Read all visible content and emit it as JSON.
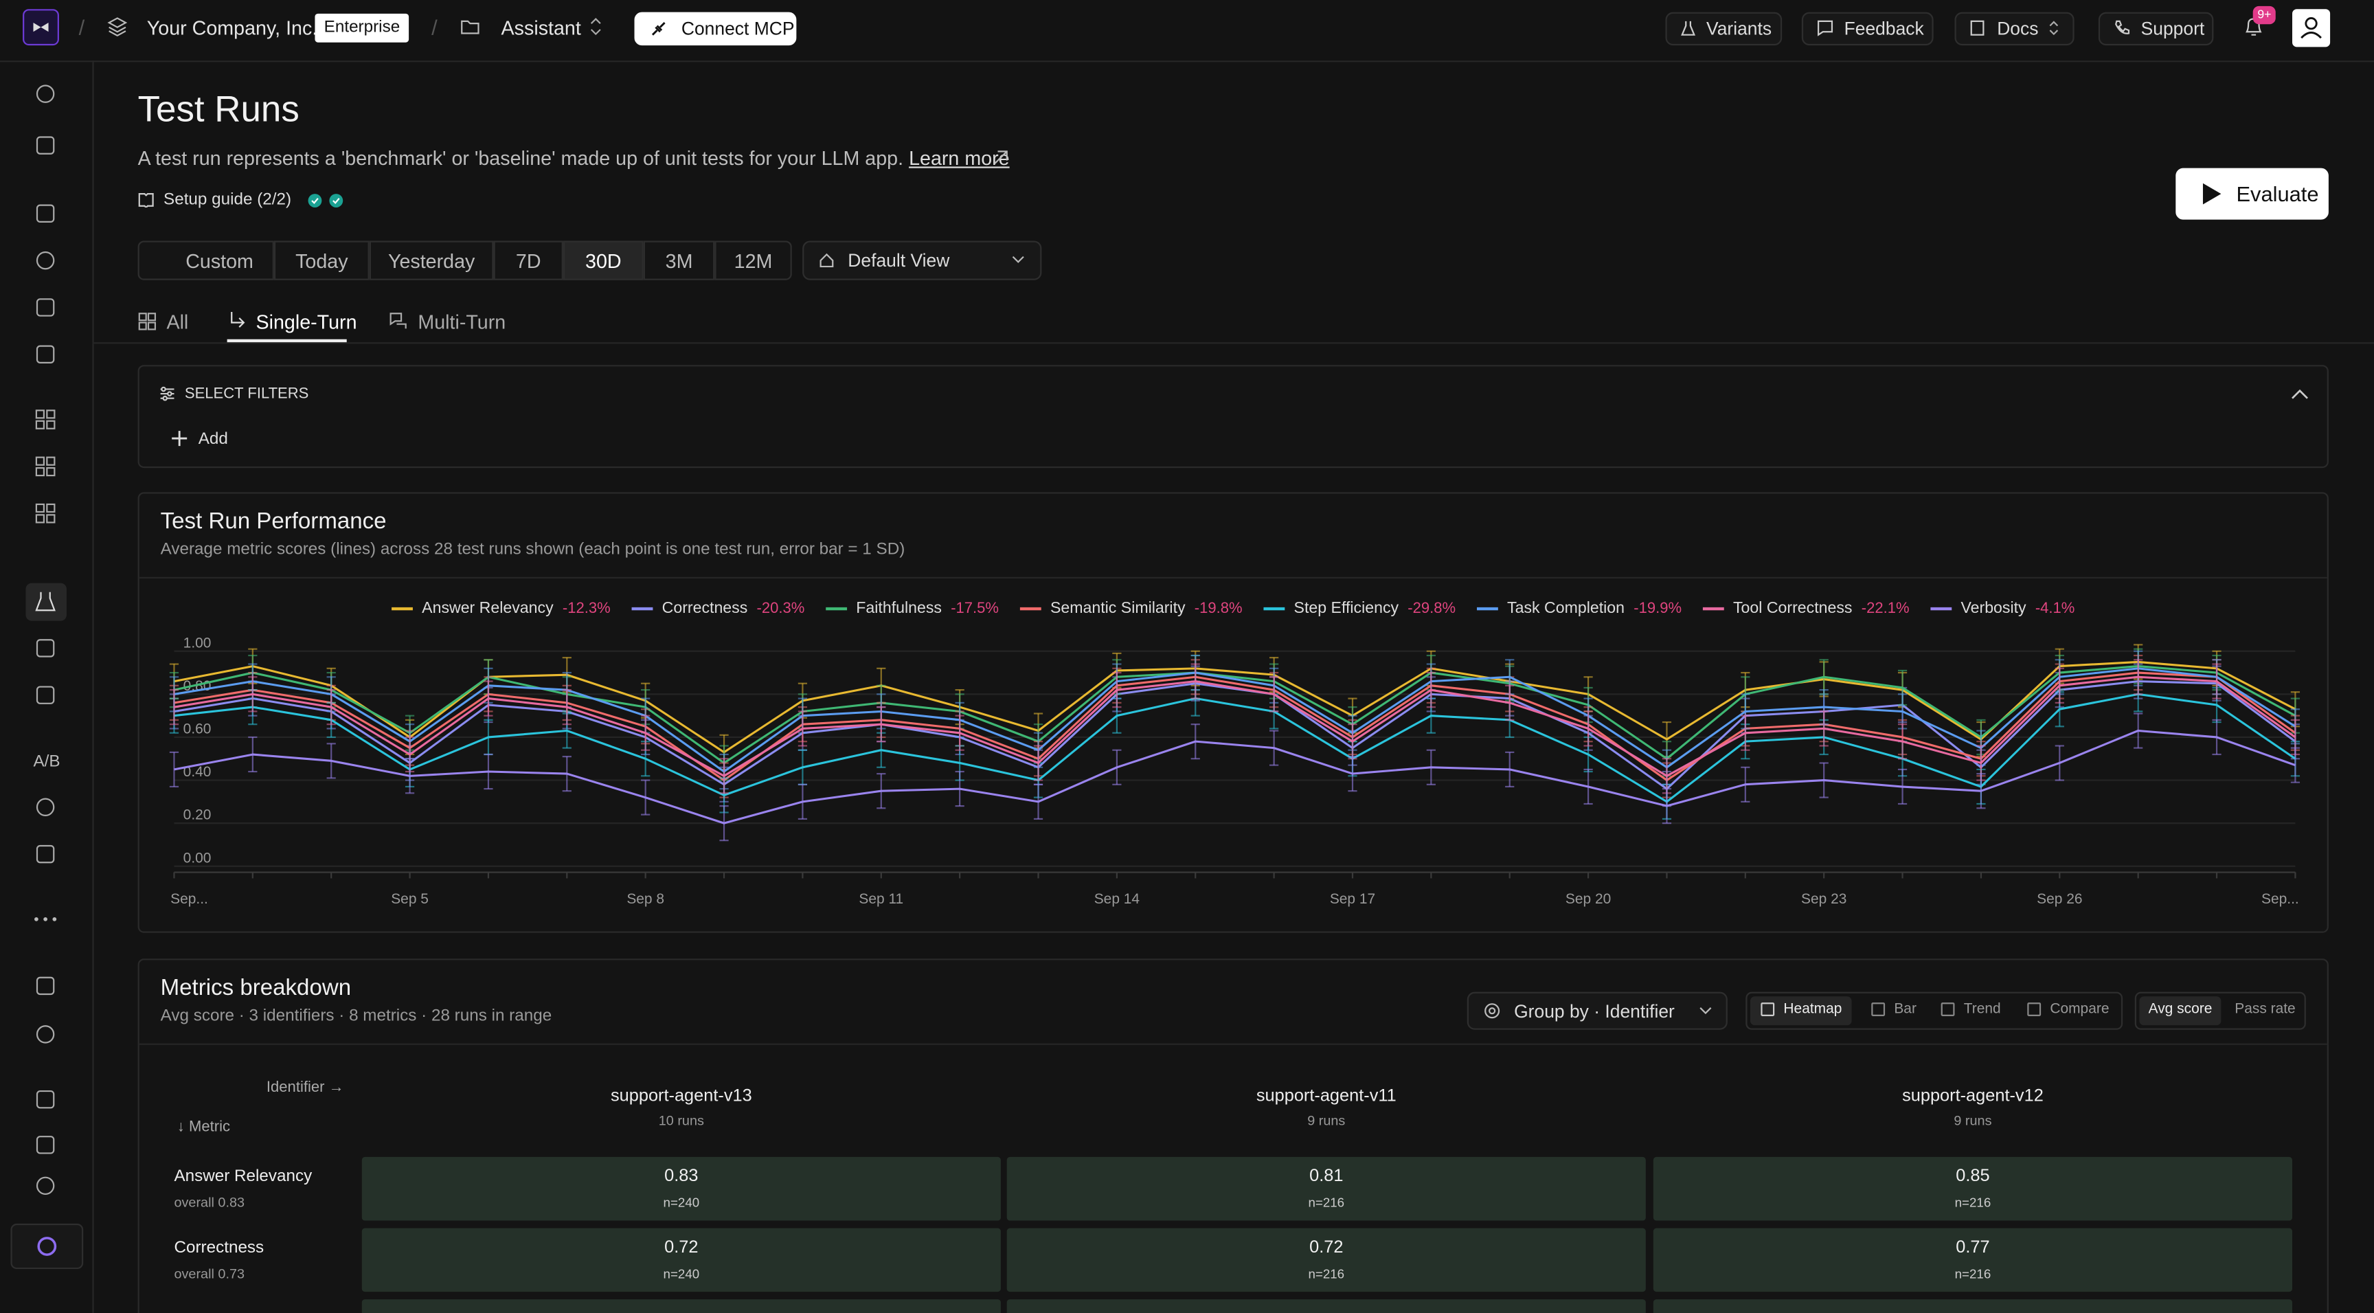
{
  "topbar": {
    "company": "Your Company, Inc.",
    "plan": "Enterprise",
    "project": "Assistant",
    "connect": "Connect MCP",
    "links": [
      "Variants",
      "Feedback",
      "Docs",
      "Support"
    ],
    "badge": "9+"
  },
  "sidebar": {
    "ab": "A/B"
  },
  "header": {
    "title": "Test Runs",
    "description": "A test run represents a 'benchmark' or 'baseline' made up of unit tests for your LLM app.",
    "learn_more": "Learn more",
    "setup_guide": "Setup guide (2/2)",
    "evaluate": "Evaluate"
  },
  "ranges": [
    "Custom",
    "Today",
    "Yesterday",
    "7D",
    "30D",
    "3M",
    "12M"
  ],
  "active_range": 4,
  "view": "Default View",
  "tabs": [
    "All",
    "Single-Turn",
    "Multi-Turn"
  ],
  "active_tab": 1,
  "filters": {
    "title": "SELECT FILTERS",
    "add": "Add"
  },
  "chart_data": {
    "type": "line",
    "title": "Test Run Performance",
    "subtitle": "Average metric scores (lines) across 28 test runs shown (each point is one test run, error bar = 1 SD)",
    "categories": [
      "Sep...",
      null,
      null,
      "Sep 5",
      null,
      null,
      "Sep 8",
      null,
      null,
      "Sep 11",
      null,
      null,
      "Sep 14",
      null,
      null,
      "Sep 17",
      null,
      null,
      "Sep 20",
      null,
      null,
      "Sep 23",
      null,
      null,
      "Sep 26",
      null,
      null,
      "Sep..."
    ],
    "ylim": [
      0,
      1
    ],
    "yticks": [
      {
        "value": 0,
        "label": "0.00"
      },
      {
        "value": 0.2,
        "label": "0.20"
      },
      {
        "value": 0.4,
        "label": "0.40"
      },
      {
        "value": 0.6,
        "label": "0.60"
      },
      {
        "value": 0.8,
        "label": "0.80"
      },
      {
        "value": 1,
        "label": "1.00"
      }
    ],
    "grid": true,
    "legend": "top",
    "series": [
      {
        "name": "Answer Relevancy",
        "change": "-12.3%",
        "color": "#e8b931",
        "error": 0.08,
        "values": [
          0.86,
          0.93,
          0.84,
          0.6,
          0.88,
          0.89,
          0.77,
          0.53,
          0.77,
          0.84,
          0.74,
          0.63,
          0.91,
          0.92,
          0.89,
          0.7,
          0.92,
          0.86,
          0.8,
          0.59,
          0.82,
          0.87,
          0.82,
          0.59,
          0.93,
          0.95,
          0.92,
          0.73
        ]
      },
      {
        "name": "Correctness",
        "change": "-20.3%",
        "color": "#8b8cf0",
        "error": 0.08,
        "values": [
          0.72,
          0.78,
          0.72,
          0.48,
          0.75,
          0.72,
          0.6,
          0.38,
          0.62,
          0.66,
          0.6,
          0.46,
          0.8,
          0.85,
          0.8,
          0.55,
          0.8,
          0.78,
          0.62,
          0.36,
          0.7,
          0.72,
          0.75,
          0.46,
          0.82,
          0.86,
          0.85,
          0.58
        ]
      },
      {
        "name": "Faithfulness",
        "change": "-17.5%",
        "color": "#3fb874",
        "error": 0.08,
        "values": [
          0.82,
          0.9,
          0.82,
          0.62,
          0.88,
          0.8,
          0.74,
          0.48,
          0.72,
          0.76,
          0.72,
          0.58,
          0.88,
          0.9,
          0.86,
          0.66,
          0.9,
          0.85,
          0.75,
          0.5,
          0.8,
          0.88,
          0.83,
          0.6,
          0.9,
          0.93,
          0.9,
          0.7
        ]
      },
      {
        "name": "Semantic Similarity",
        "change": "-19.8%",
        "color": "#f06b6b",
        "error": 0.08,
        "values": [
          0.76,
          0.82,
          0.76,
          0.55,
          0.8,
          0.76,
          0.65,
          0.4,
          0.66,
          0.68,
          0.64,
          0.5,
          0.84,
          0.88,
          0.82,
          0.6,
          0.84,
          0.8,
          0.66,
          0.4,
          0.64,
          0.66,
          0.6,
          0.5,
          0.86,
          0.9,
          0.88,
          0.62
        ]
      },
      {
        "name": "Step Efficiency",
        "change": "-29.8%",
        "color": "#2bc4dc",
        "error": 0.08,
        "values": [
          0.7,
          0.74,
          0.68,
          0.45,
          0.6,
          0.63,
          0.5,
          0.33,
          0.46,
          0.54,
          0.48,
          0.4,
          0.7,
          0.78,
          0.72,
          0.5,
          0.7,
          0.68,
          0.52,
          0.3,
          0.58,
          0.6,
          0.5,
          0.37,
          0.73,
          0.8,
          0.75,
          0.5
        ]
      },
      {
        "name": "Task Completion",
        "change": "-19.9%",
        "color": "#5b9cf0",
        "error": 0.08,
        "values": [
          0.8,
          0.86,
          0.8,
          0.58,
          0.84,
          0.82,
          0.7,
          0.44,
          0.7,
          0.72,
          0.68,
          0.54,
          0.86,
          0.9,
          0.84,
          0.62,
          0.86,
          0.88,
          0.7,
          0.46,
          0.72,
          0.74,
          0.72,
          0.55,
          0.88,
          0.92,
          0.88,
          0.65
        ]
      },
      {
        "name": "Tool Correctness",
        "change": "-22.1%",
        "color": "#e86aa0",
        "error": 0.08,
        "values": [
          0.74,
          0.8,
          0.74,
          0.52,
          0.78,
          0.74,
          0.62,
          0.42,
          0.64,
          0.66,
          0.62,
          0.48,
          0.82,
          0.86,
          0.8,
          0.58,
          0.82,
          0.76,
          0.64,
          0.42,
          0.62,
          0.64,
          0.58,
          0.48,
          0.84,
          0.88,
          0.86,
          0.6
        ]
      },
      {
        "name": "Verbosity",
        "change": "-4.1%",
        "color": "#9a84ee",
        "error": 0.08,
        "values": [
          0.45,
          0.52,
          0.49,
          0.42,
          0.44,
          0.43,
          0.32,
          0.2,
          0.3,
          0.35,
          0.36,
          0.3,
          0.46,
          0.58,
          0.55,
          0.43,
          0.46,
          0.45,
          0.37,
          0.28,
          0.38,
          0.4,
          0.37,
          0.35,
          0.48,
          0.63,
          0.6,
          0.47
        ]
      }
    ]
  },
  "breakdown": {
    "title": "Metrics breakdown",
    "subtitle": "Avg score · 3 identifiers · 8 metrics · 28 runs in range",
    "group_by": "Group by · Identifier",
    "views": [
      "Heatmap",
      "Bar",
      "Trend",
      "Compare"
    ],
    "modes": [
      "Avg score",
      "Pass rate"
    ],
    "col_header": "Identifier →",
    "row_header": "↓ Metric",
    "columns": [
      {
        "name": "support-agent-v13",
        "runs": "10 runs"
      },
      {
        "name": "support-agent-v11",
        "runs": "9 runs"
      },
      {
        "name": "support-agent-v12",
        "runs": "9 runs"
      }
    ],
    "rows": [
      {
        "metric": "Answer Relevancy",
        "overall": "overall 0.83",
        "cells": [
          {
            "score": "0.83",
            "n": "n=240"
          },
          {
            "score": "0.81",
            "n": "n=216"
          },
          {
            "score": "0.85",
            "n": "n=216"
          }
        ]
      },
      {
        "metric": "Correctness",
        "overall": "overall 0.73",
        "cells": [
          {
            "score": "0.72",
            "n": "n=240"
          },
          {
            "score": "0.72",
            "n": "n=216"
          },
          {
            "score": "0.77",
            "n": "n=216"
          }
        ]
      }
    ]
  }
}
